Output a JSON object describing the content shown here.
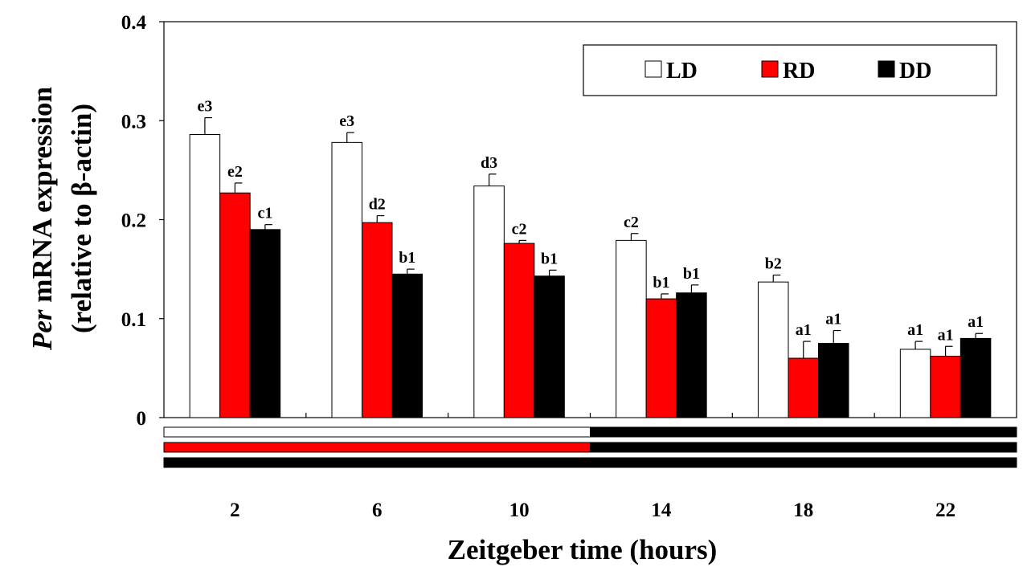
{
  "chart_data": {
    "type": "bar",
    "categories": [
      "2",
      "6",
      "10",
      "14",
      "18",
      "22"
    ],
    "series": [
      {
        "name": "LD",
        "color": "#ffffff",
        "values": [
          0.286,
          0.278,
          0.234,
          0.179,
          0.137,
          0.069
        ],
        "errors": [
          0.017,
          0.01,
          0.012,
          0.007,
          0.007,
          0.008
        ],
        "labels": [
          "e3",
          "e3",
          "d3",
          "c2",
          "b2",
          "a1"
        ]
      },
      {
        "name": "RD",
        "color": "#ff0000",
        "values": [
          0.227,
          0.197,
          0.176,
          0.12,
          0.06,
          0.062
        ],
        "errors": [
          0.01,
          0.007,
          0.003,
          0.005,
          0.017,
          0.01
        ],
        "labels": [
          "e2",
          "d2",
          "c2",
          "b1",
          "a1",
          "a1"
        ]
      },
      {
        "name": "DD",
        "color": "#000000",
        "values": [
          0.19,
          0.145,
          0.143,
          0.126,
          0.075,
          0.08
        ],
        "errors": [
          0.005,
          0.005,
          0.006,
          0.008,
          0.013,
          0.005
        ],
        "labels": [
          "c1",
          "b1",
          "b1",
          "b1",
          "a1",
          "a1"
        ]
      }
    ],
    "ylabel_italic": "Per",
    "ylabel_rest": " mRNA expression",
    "ylabel_line2": "(relative to β-actin)",
    "xlabel": "Zeitgeber time (hours)",
    "ylim": [
      0,
      0.4
    ],
    "yticks": [
      "0",
      "0.1",
      "0.2",
      "0.3",
      "0.4"
    ],
    "grid": false,
    "legend_position": "top-right",
    "light_schedule": [
      {
        "name": "LD",
        "first_half_color": "#ffffff",
        "second_half_color": "#000000"
      },
      {
        "name": "RD",
        "first_half_color": "#ff0000",
        "second_half_color": "#000000"
      },
      {
        "name": "DD",
        "first_half_color": "#000000",
        "second_half_color": "#000000"
      }
    ]
  }
}
